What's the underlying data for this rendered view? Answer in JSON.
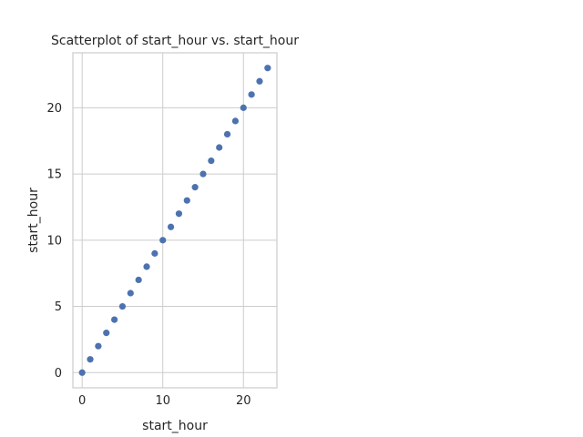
{
  "chart_data": {
    "type": "scatter",
    "title": "Scatterplot of start_hour vs. start_hour",
    "xlabel": "start_hour",
    "ylabel": "start_hour",
    "xlim": [
      -1.15,
      24.15
    ],
    "ylim": [
      -1.15,
      24.15
    ],
    "xticks": [
      0,
      10,
      20
    ],
    "yticks": [
      0,
      5,
      10,
      15,
      20
    ],
    "grid": true,
    "color": "#4c72b0",
    "series": [
      {
        "x": [
          0,
          1,
          2,
          3,
          4,
          5,
          6,
          7,
          8,
          9,
          10,
          11,
          12,
          13,
          14,
          15,
          16,
          17,
          18,
          19,
          20,
          21,
          22,
          23
        ],
        "y": [
          0,
          1,
          2,
          3,
          4,
          5,
          6,
          7,
          8,
          9,
          10,
          11,
          12,
          13,
          14,
          15,
          16,
          17,
          18,
          19,
          20,
          21,
          22,
          23
        ]
      }
    ]
  }
}
